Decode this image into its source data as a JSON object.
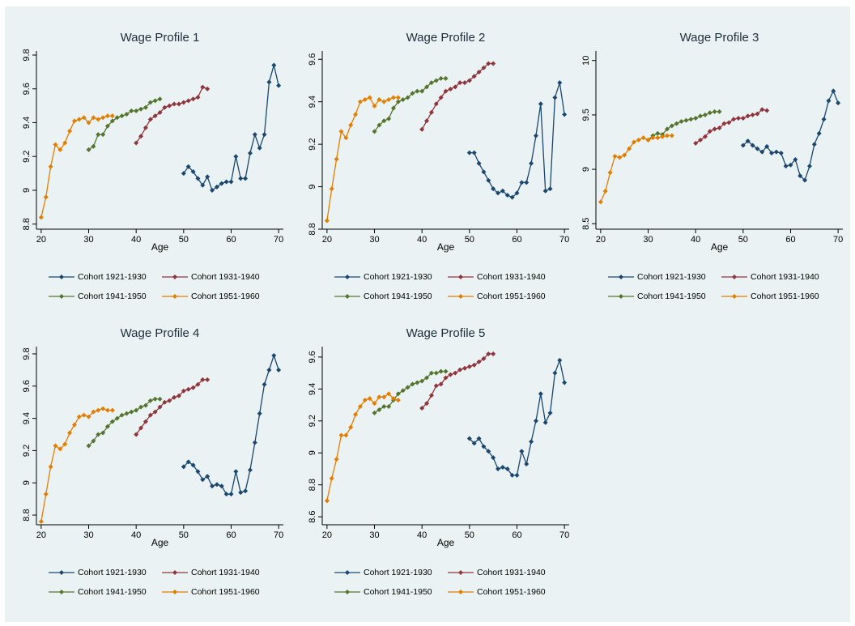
{
  "chart_data": [
    {
      "type": "line",
      "title": "Wage Profile 1",
      "x_label": "Age",
      "xlim": [
        19,
        71
      ],
      "xticks": [
        20,
        30,
        40,
        50,
        60,
        70
      ],
      "ylim": [
        8.77,
        9.8
      ],
      "yticks": [
        8.8,
        9,
        9.2,
        9.4,
        9.6,
        9.8
      ],
      "series": [
        {
          "name": "Cohort 1921-1930",
          "color": "#1a476f",
          "x": [
            50,
            51,
            52,
            53,
            54,
            55,
            56,
            57,
            58,
            59,
            60,
            61,
            62,
            63,
            64,
            65,
            66,
            67,
            68,
            69,
            70
          ],
          "values": [
            9.1,
            9.14,
            9.11,
            9.07,
            9.03,
            9.08,
            9.0,
            9.02,
            9.04,
            9.05,
            9.05,
            9.2,
            9.07,
            9.07,
            9.22,
            9.33,
            9.25,
            9.33,
            9.64,
            9.74,
            9.62
          ]
        },
        {
          "name": "Cohort 1931-1940",
          "color": "#90353b",
          "x": [
            40,
            41,
            42,
            43,
            44,
            45,
            46,
            47,
            48,
            49,
            50,
            51,
            52,
            53,
            54,
            55
          ],
          "values": [
            9.28,
            9.32,
            9.37,
            9.42,
            9.44,
            9.46,
            9.49,
            9.5,
            9.51,
            9.51,
            9.52,
            9.53,
            9.54,
            9.55,
            9.61,
            9.6
          ]
        },
        {
          "name": "Cohort 1941-1950",
          "color": "#55752f",
          "x": [
            30,
            31,
            32,
            33,
            34,
            35,
            36,
            37,
            38,
            39,
            40,
            41,
            42,
            43,
            44,
            45
          ],
          "values": [
            9.24,
            9.26,
            9.33,
            9.33,
            9.38,
            9.41,
            9.43,
            9.44,
            9.45,
            9.47,
            9.47,
            9.48,
            9.49,
            9.52,
            9.53,
            9.54
          ]
        },
        {
          "name": "Cohort 1951-1960",
          "color": "#e37e00",
          "x": [
            20,
            21,
            22,
            23,
            24,
            25,
            26,
            27,
            28,
            29,
            30,
            31,
            32,
            33,
            34,
            35
          ],
          "values": [
            8.84,
            8.96,
            9.14,
            9.27,
            9.24,
            9.28,
            9.35,
            9.41,
            9.42,
            9.43,
            9.4,
            9.43,
            9.42,
            9.43,
            9.44,
            9.44
          ]
        }
      ]
    },
    {
      "type": "line",
      "title": "Wage Profile 2",
      "x_label": "Age",
      "xlim": [
        19,
        71
      ],
      "xticks": [
        20,
        30,
        40,
        50,
        60,
        70
      ],
      "ylim": [
        8.8,
        9.62
      ],
      "yticks": [
        8.8,
        9,
        9.2,
        9.4,
        9.6
      ],
      "series": [
        {
          "name": "Cohort 1921-1930",
          "color": "#1a476f",
          "x": [
            50,
            51,
            52,
            53,
            54,
            55,
            56,
            57,
            58,
            59,
            60,
            61,
            62,
            63,
            64,
            65,
            66,
            67,
            68,
            69,
            70
          ],
          "values": [
            9.16,
            9.16,
            9.11,
            9.07,
            9.03,
            8.99,
            8.97,
            8.98,
            8.96,
            8.95,
            8.97,
            9.02,
            9.02,
            9.11,
            9.24,
            9.39,
            8.98,
            8.99,
            9.42,
            9.49,
            9.34
          ]
        },
        {
          "name": "Cohort 1931-1940",
          "color": "#90353b",
          "x": [
            40,
            41,
            42,
            43,
            44,
            45,
            46,
            47,
            48,
            49,
            50,
            51,
            52,
            53,
            54,
            55
          ],
          "values": [
            9.27,
            9.31,
            9.35,
            9.39,
            9.42,
            9.45,
            9.46,
            9.47,
            9.49,
            9.49,
            9.5,
            9.52,
            9.54,
            9.56,
            9.58,
            9.58
          ]
        },
        {
          "name": "Cohort 1941-1950",
          "color": "#55752f",
          "x": [
            30,
            31,
            32,
            33,
            34,
            35,
            36,
            37,
            38,
            39,
            40,
            41,
            42,
            43,
            44,
            45
          ],
          "values": [
            9.26,
            9.29,
            9.31,
            9.32,
            9.37,
            9.4,
            9.41,
            9.42,
            9.44,
            9.45,
            9.45,
            9.47,
            9.49,
            9.5,
            9.51,
            9.51
          ]
        },
        {
          "name": "Cohort 1951-1960",
          "color": "#e37e00",
          "x": [
            20,
            21,
            22,
            23,
            24,
            25,
            26,
            27,
            28,
            29,
            30,
            31,
            32,
            33,
            34,
            35
          ],
          "values": [
            8.84,
            8.99,
            9.13,
            9.26,
            9.23,
            9.29,
            9.34,
            9.4,
            9.41,
            9.42,
            9.38,
            9.41,
            9.4,
            9.41,
            9.42,
            9.42
          ]
        }
      ]
    },
    {
      "type": "line",
      "title": "Wage Profile 3",
      "x_label": "Age",
      "xlim": [
        19,
        71
      ],
      "xticks": [
        20,
        30,
        40,
        50,
        60,
        70
      ],
      "ylim": [
        8.45,
        10.05
      ],
      "yticks": [
        8.5,
        9,
        9.5,
        10
      ],
      "series": [
        {
          "name": "Cohort 1921-1930",
          "color": "#1a476f",
          "x": [
            50,
            51,
            52,
            53,
            54,
            55,
            56,
            57,
            58,
            59,
            60,
            61,
            62,
            63,
            64,
            65,
            66,
            67,
            68,
            69,
            70
          ],
          "values": [
            9.22,
            9.26,
            9.22,
            9.19,
            9.16,
            9.21,
            9.15,
            9.16,
            9.15,
            9.03,
            9.04,
            9.09,
            8.94,
            8.9,
            9.03,
            9.23,
            9.33,
            9.46,
            9.63,
            9.72,
            9.61
          ]
        },
        {
          "name": "Cohort 1931-1940",
          "color": "#90353b",
          "x": [
            40,
            41,
            42,
            43,
            44,
            45,
            46,
            47,
            48,
            49,
            50,
            51,
            52,
            53,
            54,
            55
          ],
          "values": [
            9.24,
            9.27,
            9.3,
            9.35,
            9.37,
            9.38,
            9.42,
            9.43,
            9.46,
            9.47,
            9.47,
            9.49,
            9.5,
            9.51,
            9.55,
            9.54
          ]
        },
        {
          "name": "Cohort 1941-1950",
          "color": "#55752f",
          "x": [
            30,
            31,
            32,
            33,
            34,
            35,
            36,
            37,
            38,
            39,
            40,
            41,
            42,
            43,
            44,
            45
          ],
          "values": [
            9.27,
            9.31,
            9.33,
            9.32,
            9.37,
            9.4,
            9.42,
            9.44,
            9.45,
            9.46,
            9.47,
            9.49,
            9.5,
            9.52,
            9.53,
            9.53
          ]
        },
        {
          "name": "Cohort 1951-1960",
          "color": "#e37e00",
          "x": [
            20,
            21,
            22,
            23,
            24,
            25,
            26,
            27,
            28,
            29,
            30,
            31,
            32,
            33,
            34,
            35
          ],
          "values": [
            8.7,
            8.8,
            8.97,
            9.12,
            9.11,
            9.13,
            9.19,
            9.25,
            9.27,
            9.29,
            9.27,
            9.29,
            9.29,
            9.3,
            9.31,
            9.31
          ]
        }
      ]
    },
    {
      "type": "line",
      "title": "Wage Profile 4",
      "x_label": "Age",
      "xlim": [
        19,
        71
      ],
      "xticks": [
        20,
        30,
        40,
        50,
        60,
        70
      ],
      "ylim": [
        8.74,
        9.82
      ],
      "yticks": [
        8.8,
        9,
        9.2,
        9.4,
        9.6,
        9.8
      ],
      "series": [
        {
          "name": "Cohort 1921-1930",
          "color": "#1a476f",
          "x": [
            50,
            51,
            52,
            53,
            54,
            55,
            56,
            57,
            58,
            59,
            60,
            61,
            62,
            63,
            64,
            65,
            66,
            67,
            68,
            69,
            70
          ],
          "values": [
            9.1,
            9.13,
            9.11,
            9.07,
            9.02,
            9.04,
            8.98,
            8.99,
            8.98,
            8.93,
            8.93,
            9.07,
            8.94,
            8.95,
            9.08,
            9.25,
            9.43,
            9.61,
            9.7,
            9.79,
            9.7
          ]
        },
        {
          "name": "Cohort 1931-1940",
          "color": "#90353b",
          "x": [
            40,
            41,
            42,
            43,
            44,
            45,
            46,
            47,
            48,
            49,
            50,
            51,
            52,
            53,
            54,
            55
          ],
          "values": [
            9.3,
            9.34,
            9.38,
            9.42,
            9.44,
            9.47,
            9.5,
            9.51,
            9.53,
            9.54,
            9.57,
            9.58,
            9.59,
            9.61,
            9.64,
            9.64
          ]
        },
        {
          "name": "Cohort 1941-1950",
          "color": "#55752f",
          "x": [
            30,
            31,
            32,
            33,
            34,
            35,
            36,
            37,
            38,
            39,
            40,
            41,
            42,
            43,
            44,
            45
          ],
          "values": [
            9.23,
            9.26,
            9.3,
            9.31,
            9.35,
            9.38,
            9.4,
            9.42,
            9.43,
            9.44,
            9.45,
            9.47,
            9.48,
            9.51,
            9.52,
            9.52
          ]
        },
        {
          "name": "Cohort 1951-1960",
          "color": "#e37e00",
          "x": [
            20,
            21,
            22,
            23,
            24,
            25,
            26,
            27,
            28,
            29,
            30,
            31,
            32,
            33,
            34,
            35
          ],
          "values": [
            8.76,
            8.93,
            9.1,
            9.23,
            9.21,
            9.24,
            9.31,
            9.36,
            9.41,
            9.42,
            9.41,
            9.44,
            9.45,
            9.46,
            9.45,
            9.45
          ]
        }
      ]
    },
    {
      "type": "line",
      "title": "Wage Profile 5",
      "x_label": "Age",
      "xlim": [
        19,
        71
      ],
      "xticks": [
        20,
        30,
        40,
        50,
        60,
        70
      ],
      "ylim": [
        8.55,
        9.64
      ],
      "yticks": [
        8.6,
        8.8,
        9,
        9.2,
        9.4,
        9.6
      ],
      "series": [
        {
          "name": "Cohort 1921-1930",
          "color": "#1a476f",
          "x": [
            50,
            51,
            52,
            53,
            54,
            55,
            56,
            57,
            58,
            59,
            60,
            61,
            62,
            63,
            64,
            65,
            66,
            67,
            68,
            69,
            70
          ],
          "values": [
            9.09,
            9.06,
            9.09,
            9.04,
            9.01,
            8.97,
            8.9,
            8.91,
            8.9,
            8.86,
            8.86,
            9.01,
            8.93,
            9.07,
            9.2,
            9.37,
            9.19,
            9.25,
            9.5,
            9.58,
            9.44
          ]
        },
        {
          "name": "Cohort 1931-1940",
          "color": "#90353b",
          "x": [
            40,
            41,
            42,
            43,
            44,
            45,
            46,
            47,
            48,
            49,
            50,
            51,
            52,
            53,
            54,
            55
          ],
          "values": [
            9.28,
            9.31,
            9.36,
            9.42,
            9.43,
            9.47,
            9.49,
            9.5,
            9.52,
            9.53,
            9.54,
            9.55,
            9.57,
            9.59,
            9.62,
            9.62
          ]
        },
        {
          "name": "Cohort 1941-1950",
          "color": "#55752f",
          "x": [
            30,
            31,
            32,
            33,
            34,
            35,
            36,
            37,
            38,
            39,
            40,
            41,
            42,
            43,
            44,
            45
          ],
          "values": [
            9.25,
            9.27,
            9.29,
            9.29,
            9.33,
            9.37,
            9.39,
            9.41,
            9.43,
            9.44,
            9.45,
            9.47,
            9.5,
            9.5,
            9.51,
            9.51
          ]
        },
        {
          "name": "Cohort 1951-1960",
          "color": "#e37e00",
          "x": [
            20,
            21,
            22,
            23,
            24,
            25,
            26,
            27,
            28,
            29,
            30,
            31,
            32,
            33,
            34,
            35
          ],
          "values": [
            8.7,
            8.84,
            8.96,
            9.11,
            9.11,
            9.16,
            9.24,
            9.29,
            9.33,
            9.34,
            9.31,
            9.35,
            9.35,
            9.37,
            9.34,
            9.33
          ]
        }
      ]
    }
  ]
}
